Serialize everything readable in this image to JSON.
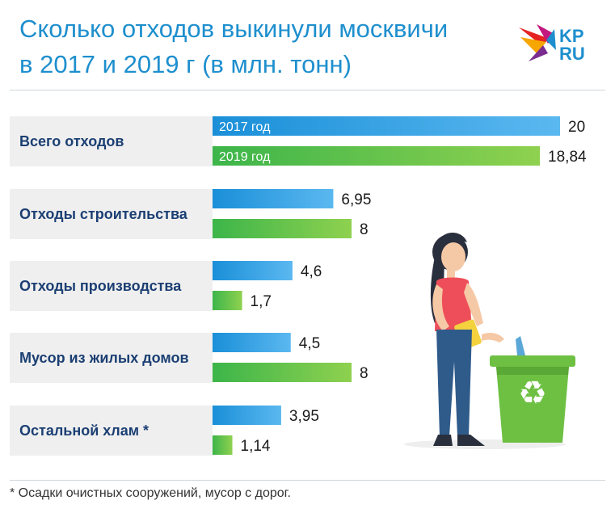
{
  "title_line1": "Сколько отходов выкинули москвичи",
  "title_line2": "в 2017 и 2019 г (в млн. тонн)",
  "logo": {
    "text_top": "KP",
    "text_bottom": "RU",
    "colors": [
      "#e52421",
      "#f7a600",
      "#7b2c8f",
      "#1e8fce"
    ]
  },
  "footnote": "* Осадки очистных сооружений, мусор с дорог.",
  "illustration": {
    "description_icon": "woman-recycling-bin-icon",
    "bin_color": "#6ec043",
    "symbol": "♻"
  },
  "colors": {
    "series_2017": "#1a8fd8",
    "series_2017_light": "#5bb8f0",
    "series_2019": "#3cb54a",
    "series_2019_light": "#8fd14f",
    "category_bg": "#efefef",
    "label_text": "#1b3f73",
    "title_text": "#1e8fce"
  },
  "chart_data": {
    "type": "bar",
    "orientation": "horizontal",
    "categories": [
      "Всего отходов",
      "Отходы строительства",
      "Отходы производства",
      "Мусор из жилых домов",
      "Остальной хлам *"
    ],
    "series": [
      {
        "name": "2017 год",
        "values": [
          20,
          6.95,
          4.6,
          4.5,
          3.95
        ]
      },
      {
        "name": "2019 год",
        "values": [
          18.84,
          8,
          1.7,
          8,
          1.14
        ]
      }
    ],
    "value_labels": [
      [
        "20",
        "6,95",
        "4,6",
        "4,5",
        "3,95"
      ],
      [
        "18,84",
        "8",
        "1,7",
        "8",
        "1,14"
      ]
    ],
    "xlim": [
      0,
      20
    ],
    "grid": false,
    "legend": "inline-on-first-bars"
  }
}
